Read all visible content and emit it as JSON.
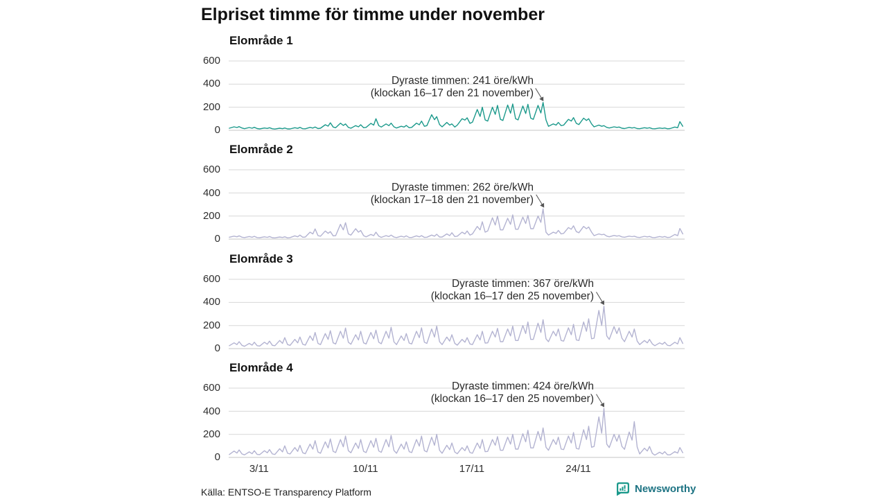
{
  "title": "Elpriset timme för timme under november",
  "source": "Källa: ENTSO-E Transparency Platform",
  "branding": {
    "name": "Newsworthy",
    "icon": "newsworthy-bubble-barchart-icon",
    "icon_color": "#1b998b",
    "text_color": "#1d7383"
  },
  "colors": {
    "area1_line": "#1b998b",
    "other_areas_line": "#b3b3d1",
    "gridline": "#d7d7d7",
    "zero_line": "#c6c6c6",
    "text": "#1a1a1a",
    "annotation_text": "#2b2b2b",
    "arrow": "#555555"
  },
  "chart_data": {
    "type": "line",
    "unit": "öre/kWh",
    "x_unit": "day of November",
    "x_axis": {
      "tick_labels": [
        "3/11",
        "10/11",
        "17/11",
        "24/11"
      ],
      "tick_days": [
        3,
        10,
        17,
        24
      ],
      "range_days": [
        1,
        31
      ]
    },
    "y_axis": {
      "ticks": [
        0,
        200,
        400,
        600
      ],
      "ylim": [
        0,
        650
      ],
      "grid": true
    },
    "sample_hours": [
      1,
      8.5,
      13,
      16.5,
      21
    ],
    "panels": [
      {
        "title": "Elområde 1",
        "color": "#1b998b",
        "annotation": {
          "line1": "Dyraste timmen: 241 öre/kWh",
          "line2": "(klockan 16–17 den 21 november)",
          "value": 241,
          "day": 21,
          "hour": 16.5
        },
        "daily": [
          [
            18,
            30,
            24,
            32,
            20
          ],
          [
            14,
            24,
            18,
            26,
            15
          ],
          [
            12,
            20,
            16,
            22,
            13
          ],
          [
            11,
            18,
            14,
            20,
            12
          ],
          [
            12,
            22,
            17,
            25,
            14
          ],
          [
            13,
            25,
            19,
            28,
            15
          ],
          [
            18,
            48,
            36,
            65,
            28
          ],
          [
            22,
            62,
            42,
            55,
            25
          ],
          [
            18,
            40,
            30,
            48,
            22
          ],
          [
            25,
            60,
            45,
            100,
            40
          ],
          [
            28,
            55,
            40,
            62,
            30
          ],
          [
            20,
            35,
            28,
            42,
            22
          ],
          [
            25,
            62,
            48,
            80,
            35
          ],
          [
            40,
            135,
            92,
            118,
            50
          ],
          [
            30,
            68,
            45,
            55,
            28
          ],
          [
            45,
            100,
            88,
            108,
            60
          ],
          [
            70,
            180,
            120,
            200,
            90
          ],
          [
            80,
            200,
            138,
            215,
            95
          ],
          [
            85,
            218,
            148,
            228,
            100
          ],
          [
            90,
            210,
            145,
            225,
            105
          ],
          [
            95,
            215,
            150,
            241,
            90
          ],
          [
            35,
            55,
            45,
            68,
            40
          ],
          [
            45,
            95,
            80,
            110,
            60
          ],
          [
            50,
            105,
            85,
            100,
            55
          ],
          [
            30,
            45,
            35,
            40,
            25
          ],
          [
            20,
            30,
            25,
            28,
            18
          ],
          [
            15,
            25,
            20,
            24,
            15
          ],
          [
            14,
            22,
            18,
            22,
            14
          ],
          [
            13,
            20,
            16,
            20,
            13
          ],
          [
            15,
            28,
            22,
            75,
            35
          ]
        ]
      },
      {
        "title": "Elområde 2",
        "color": "#b3b3d1",
        "annotation": {
          "line1": "Dyraste timmen: 262 öre/kWh",
          "line2": "(klockan 17–18 den 21 november)",
          "value": 262,
          "day": 21,
          "hour": 17.5
        },
        "daily": [
          [
            16,
            26,
            20,
            28,
            16
          ],
          [
            13,
            22,
            16,
            24,
            13
          ],
          [
            12,
            20,
            15,
            22,
            12
          ],
          [
            11,
            18,
            14,
            20,
            11
          ],
          [
            13,
            28,
            20,
            35,
            16
          ],
          [
            18,
            60,
            45,
            88,
            30
          ],
          [
            25,
            70,
            50,
            65,
            28
          ],
          [
            30,
            128,
            80,
            142,
            45
          ],
          [
            35,
            90,
            60,
            75,
            30
          ],
          [
            20,
            40,
            30,
            60,
            25
          ],
          [
            15,
            30,
            22,
            35,
            18
          ],
          [
            13,
            25,
            18,
            28,
            14
          ],
          [
            14,
            28,
            20,
            30,
            15
          ],
          [
            16,
            35,
            25,
            42,
            18
          ],
          [
            18,
            45,
            30,
            55,
            22
          ],
          [
            25,
            60,
            45,
            70,
            35
          ],
          [
            45,
            110,
            80,
            150,
            60
          ],
          [
            70,
            185,
            122,
            200,
            80
          ],
          [
            80,
            180,
            128,
            210,
            85
          ],
          [
            85,
            190,
            135,
            205,
            90
          ],
          [
            90,
            200,
            145,
            262,
            60
          ],
          [
            35,
            60,
            50,
            75,
            45
          ],
          [
            50,
            100,
            85,
            115,
            65
          ],
          [
            55,
            110,
            90,
            105,
            60
          ],
          [
            30,
            45,
            38,
            42,
            26
          ],
          [
            20,
            32,
            26,
            30,
            19
          ],
          [
            16,
            26,
            21,
            25,
            16
          ],
          [
            14,
            24,
            19,
            23,
            14
          ],
          [
            13,
            22,
            17,
            22,
            14
          ],
          [
            16,
            40,
            30,
            92,
            45
          ]
        ]
      },
      {
        "title": "Elområde 3",
        "color": "#b3b3d1",
        "annotation": {
          "line1": "Dyraste timmen: 367 öre/kWh",
          "line2": "(klockan 16–17 den 25 november)",
          "value": 367,
          "day": 25,
          "hour": 16.5
        },
        "daily": [
          [
            25,
            50,
            35,
            60,
            28
          ],
          [
            20,
            45,
            30,
            55,
            25
          ],
          [
            22,
            55,
            38,
            65,
            28
          ],
          [
            25,
            70,
            45,
            95,
            35
          ],
          [
            28,
            80,
            50,
            100,
            38
          ],
          [
            30,
            110,
            70,
            140,
            45
          ],
          [
            35,
            130,
            80,
            155,
            50
          ],
          [
            40,
            150,
            90,
            178,
            55
          ],
          [
            38,
            120,
            75,
            150,
            50
          ],
          [
            40,
            140,
            85,
            160,
            55
          ],
          [
            42,
            150,
            90,
            185,
            58
          ],
          [
            35,
            110,
            70,
            130,
            48
          ],
          [
            40,
            150,
            95,
            180,
            55
          ],
          [
            45,
            170,
            100,
            195,
            60
          ],
          [
            35,
            100,
            65,
            120,
            45
          ],
          [
            30,
            80,
            55,
            95,
            40
          ],
          [
            35,
            120,
            75,
            150,
            48
          ],
          [
            50,
            150,
            100,
            175,
            60
          ],
          [
            60,
            170,
            110,
            195,
            70
          ],
          [
            70,
            200,
            130,
            230,
            80
          ],
          [
            80,
            220,
            140,
            250,
            85
          ],
          [
            60,
            150,
            110,
            170,
            70
          ],
          [
            65,
            180,
            120,
            210,
            75
          ],
          [
            70,
            230,
            150,
            258,
            85
          ],
          [
            90,
            330,
            200,
            367,
            110
          ],
          [
            80,
            190,
            130,
            180,
            90
          ],
          [
            60,
            150,
            100,
            170,
            65
          ],
          [
            35,
            70,
            50,
            80,
            40
          ],
          [
            25,
            50,
            38,
            55,
            28
          ],
          [
            25,
            55,
            40,
            95,
            45
          ]
        ]
      },
      {
        "title": "Elområde 4",
        "color": "#b3b3d1",
        "annotation": {
          "line1": "Dyraste timmen: 424 öre/kWh",
          "line2": "(klockan 16–17 den 25 november)",
          "value": 424,
          "day": 25,
          "hour": 16.5
        },
        "daily": [
          [
            25,
            55,
            38,
            65,
            30
          ],
          [
            22,
            48,
            32,
            58,
            26
          ],
          [
            24,
            58,
            40,
            68,
            30
          ],
          [
            26,
            75,
            48,
            100,
            36
          ],
          [
            30,
            85,
            52,
            105,
            40
          ],
          [
            32,
            115,
            72,
            145,
            46
          ],
          [
            36,
            135,
            82,
            160,
            52
          ],
          [
            42,
            155,
            92,
            185,
            58
          ],
          [
            40,
            125,
            78,
            155,
            52
          ],
          [
            42,
            145,
            88,
            165,
            56
          ],
          [
            44,
            155,
            92,
            190,
            60
          ],
          [
            36,
            115,
            72,
            135,
            50
          ],
          [
            42,
            155,
            98,
            185,
            58
          ],
          [
            48,
            175,
            105,
            200,
            62
          ],
          [
            36,
            105,
            68,
            125,
            46
          ],
          [
            32,
            85,
            58,
            100,
            42
          ],
          [
            36,
            125,
            78,
            155,
            50
          ],
          [
            52,
            155,
            105,
            180,
            62
          ],
          [
            62,
            175,
            115,
            200,
            72
          ],
          [
            72,
            205,
            135,
            235,
            82
          ],
          [
            82,
            225,
            145,
            255,
            88
          ],
          [
            62,
            155,
            112,
            175,
            72
          ],
          [
            68,
            185,
            125,
            215,
            78
          ],
          [
            72,
            240,
            155,
            270,
            88
          ],
          [
            95,
            350,
            210,
            424,
            115
          ],
          [
            85,
            200,
            140,
            195,
            95
          ],
          [
            70,
            220,
            150,
            310,
            90
          ],
          [
            30,
            80,
            55,
            95,
            35
          ],
          [
            20,
            45,
            30,
            50,
            22
          ],
          [
            22,
            50,
            38,
            85,
            40
          ]
        ]
      }
    ]
  }
}
